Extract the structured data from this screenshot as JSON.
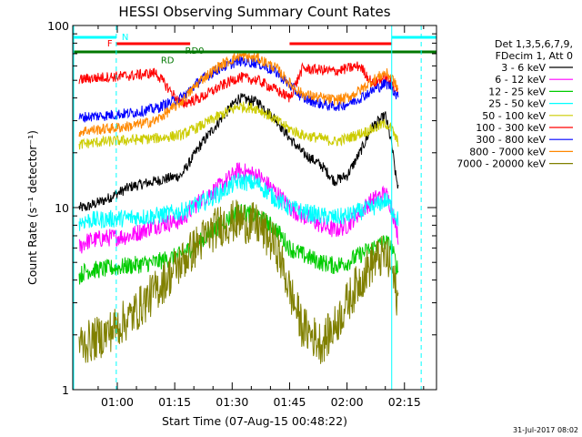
{
  "chart_data": {
    "type": "line",
    "title": "HESSI Observing Summary Count Rates",
    "xlabel": "Start Time (07-Aug-15 00:48:22)",
    "ylabel": "Count Rate (s⁻¹ detector⁻¹)",
    "y_scale": "log",
    "ylim": [
      1,
      100
    ],
    "xlim": [
      0,
      5700
    ],
    "x_unit": "seconds since 00:48:22",
    "x_ticks": [
      {
        "t": 698,
        "label": "01:00"
      },
      {
        "t": 1598,
        "label": "01:15"
      },
      {
        "t": 2498,
        "label": "01:30"
      },
      {
        "t": 3398,
        "label": "01:45"
      },
      {
        "t": 4298,
        "label": "02:00"
      },
      {
        "t": 5198,
        "label": "02:15"
      }
    ],
    "y_ticks": [
      {
        "v": 1,
        "label": "1"
      },
      {
        "v": 10,
        "label": "10"
      },
      {
        "v": 100,
        "label": "100"
      }
    ],
    "legend": {
      "placement": "right",
      "header": [
        "Det 1,3,5,6,7,9,",
        "FDecim 1, Att 0"
      ]
    },
    "series": [
      {
        "name": "3 - 6 keV",
        "color": "#000000",
        "points": [
          [
            100,
            10
          ],
          [
            200,
            10
          ],
          [
            500,
            11
          ],
          [
            900,
            13
          ],
          [
            1300,
            14
          ],
          [
            1700,
            15
          ],
          [
            2000,
            22
          ],
          [
            2300,
            30
          ],
          [
            2600,
            40
          ],
          [
            2900,
            38
          ],
          [
            3200,
            30
          ],
          [
            3400,
            24
          ],
          [
            3600,
            20
          ],
          [
            3900,
            17
          ],
          [
            4100,
            14
          ],
          [
            4300,
            15
          ],
          [
            4500,
            20
          ],
          [
            4700,
            28
          ],
          [
            4900,
            32
          ],
          [
            5000,
            22
          ],
          [
            5060,
            15
          ],
          [
            5100,
            13
          ]
        ]
      },
      {
        "name": "6 - 12 keV",
        "color": "#ff00ff",
        "points": [
          [
            100,
            6
          ],
          [
            200,
            6.5
          ],
          [
            500,
            6.8
          ],
          [
            900,
            7
          ],
          [
            1300,
            8
          ],
          [
            1700,
            8.5
          ],
          [
            2000,
            11
          ],
          [
            2300,
            13
          ],
          [
            2600,
            16
          ],
          [
            2900,
            15
          ],
          [
            3200,
            12
          ],
          [
            3400,
            10
          ],
          [
            3600,
            9
          ],
          [
            3900,
            8
          ],
          [
            4100,
            7.5
          ],
          [
            4300,
            8
          ],
          [
            4500,
            9.5
          ],
          [
            4700,
            11
          ],
          [
            4900,
            12
          ],
          [
            5000,
            10
          ],
          [
            5060,
            8
          ],
          [
            5100,
            7
          ]
        ]
      },
      {
        "name": "12 - 25 keV",
        "color": "#00cc00",
        "points": [
          [
            100,
            4.2
          ],
          [
            200,
            4.5
          ],
          [
            500,
            4.6
          ],
          [
            900,
            4.8
          ],
          [
            1300,
            5
          ],
          [
            1700,
            5.5
          ],
          [
            2000,
            6.5
          ],
          [
            2300,
            8
          ],
          [
            2600,
            9.5
          ],
          [
            2900,
            9
          ],
          [
            3200,
            7.5
          ],
          [
            3400,
            6
          ],
          [
            3600,
            5.5
          ],
          [
            3900,
            5
          ],
          [
            4100,
            4.8
          ],
          [
            4300,
            5
          ],
          [
            4500,
            5.5
          ],
          [
            4700,
            6
          ],
          [
            4900,
            6.5
          ],
          [
            5000,
            6
          ],
          [
            5060,
            5
          ],
          [
            5100,
            4.5
          ]
        ]
      },
      {
        "name": "25 - 50 keV",
        "color": "#00ffff",
        "points": [
          [
            100,
            8.3
          ],
          [
            200,
            8.5
          ],
          [
            500,
            8.6
          ],
          [
            900,
            8.8
          ],
          [
            1300,
            9
          ],
          [
            1700,
            9.5
          ],
          [
            2000,
            10.5
          ],
          [
            2300,
            12
          ],
          [
            2600,
            14
          ],
          [
            2900,
            13.5
          ],
          [
            3200,
            11
          ],
          [
            3400,
            10
          ],
          [
            3600,
            9.5
          ],
          [
            3900,
            9
          ],
          [
            4100,
            8.8
          ],
          [
            4300,
            9
          ],
          [
            4500,
            9.5
          ],
          [
            4700,
            10
          ],
          [
            4900,
            11
          ],
          [
            5000,
            10
          ],
          [
            5060,
            9
          ],
          [
            5100,
            8.5
          ]
        ]
      },
      {
        "name": "50 - 100 keV",
        "color": "#cccc00",
        "points": [
          [
            100,
            22
          ],
          [
            200,
            22.5
          ],
          [
            500,
            23
          ],
          [
            900,
            23.5
          ],
          [
            1300,
            24
          ],
          [
            1700,
            25
          ],
          [
            2000,
            28
          ],
          [
            2300,
            32
          ],
          [
            2600,
            36
          ],
          [
            2900,
            35
          ],
          [
            3200,
            30
          ],
          [
            3400,
            27
          ],
          [
            3600,
            25
          ],
          [
            3900,
            24
          ],
          [
            4100,
            23
          ],
          [
            4300,
            24
          ],
          [
            4500,
            25.5
          ],
          [
            4700,
            27
          ],
          [
            4900,
            29
          ],
          [
            5000,
            27
          ],
          [
            5060,
            24
          ],
          [
            5100,
            23
          ]
        ]
      },
      {
        "name": "100 - 300 keV",
        "color": "#ff0000",
        "points": [
          [
            100,
            50
          ],
          [
            200,
            51
          ],
          [
            500,
            52
          ],
          [
            900,
            53
          ],
          [
            1300,
            55
          ],
          [
            1700,
            37
          ],
          [
            2000,
            40
          ],
          [
            2300,
            46
          ],
          [
            2600,
            52
          ],
          [
            2900,
            50
          ],
          [
            3200,
            44
          ],
          [
            3400,
            40
          ],
          [
            3600,
            58
          ],
          [
            3900,
            57
          ],
          [
            4100,
            56
          ],
          [
            4300,
            58
          ],
          [
            4500,
            60
          ],
          [
            4700,
            48
          ],
          [
            4900,
            52
          ],
          [
            5000,
            48
          ],
          [
            5060,
            45
          ],
          [
            5100,
            44
          ]
        ]
      },
      {
        "name": "300 - 800 keV",
        "color": "#0000ff",
        "points": [
          [
            100,
            31
          ],
          [
            200,
            31.5
          ],
          [
            500,
            32
          ],
          [
            900,
            33
          ],
          [
            1300,
            35
          ],
          [
            1700,
            40
          ],
          [
            2000,
            50
          ],
          [
            2300,
            58
          ],
          [
            2600,
            64
          ],
          [
            2900,
            62
          ],
          [
            3200,
            55
          ],
          [
            3400,
            47
          ],
          [
            3600,
            40
          ],
          [
            3900,
            37
          ],
          [
            4100,
            36
          ],
          [
            4300,
            37
          ],
          [
            4500,
            40
          ],
          [
            4700,
            44
          ],
          [
            4900,
            48
          ],
          [
            5000,
            46
          ],
          [
            5060,
            42
          ],
          [
            5100,
            40
          ]
        ]
      },
      {
        "name": "800 - 7000 keV",
        "color": "#ff8800",
        "points": [
          [
            100,
            26
          ],
          [
            200,
            26.5
          ],
          [
            500,
            27
          ],
          [
            900,
            28
          ],
          [
            1300,
            30
          ],
          [
            1700,
            38
          ],
          [
            2000,
            50
          ],
          [
            2300,
            60
          ],
          [
            2600,
            68
          ],
          [
            2900,
            66
          ],
          [
            3200,
            58
          ],
          [
            3400,
            48
          ],
          [
            3600,
            42
          ],
          [
            3900,
            40
          ],
          [
            4100,
            39
          ],
          [
            4300,
            40
          ],
          [
            4500,
            44
          ],
          [
            4700,
            50
          ],
          [
            4900,
            55
          ],
          [
            5000,
            52
          ],
          [
            5060,
            47
          ],
          [
            5100,
            45
          ]
        ]
      },
      {
        "name": "7000 - 20000 keV",
        "color": "#808000",
        "points": [
          [
            100,
            1.8
          ],
          [
            200,
            1.8
          ],
          [
            500,
            2
          ],
          [
            900,
            2.5
          ],
          [
            1300,
            3.5
          ],
          [
            1700,
            5
          ],
          [
            2000,
            6.5
          ],
          [
            2300,
            8
          ],
          [
            2600,
            8.5
          ],
          [
            2900,
            8
          ],
          [
            3200,
            6
          ],
          [
            3400,
            3.5
          ],
          [
            3600,
            2.2
          ],
          [
            3900,
            1.8
          ],
          [
            4100,
            2.2
          ],
          [
            4300,
            3
          ],
          [
            4500,
            4
          ],
          [
            4700,
            5
          ],
          [
            4900,
            5.5
          ],
          [
            5000,
            4.5
          ],
          [
            5060,
            3.5
          ],
          [
            5100,
            3
          ]
        ]
      }
    ],
    "flags": {
      "night": {
        "label": "N",
        "color": "#00ffff",
        "intervals": [
          [
            0,
            682
          ],
          [
            4998,
            5700
          ]
        ]
      },
      "flare": {
        "label": "F",
        "color": "#ff0000",
        "intervals": [
          [
            682,
            1840
          ],
          [
            3398,
            4998
          ]
        ]
      },
      "attenuator": {
        "label": "RD",
        "color": "#007700",
        "intervals": [
          [
            0,
            5700
          ]
        ]
      }
    },
    "annotations": [
      {
        "label": "RD0",
        "t": 1760,
        "level": 70
      },
      {
        "label": "RD",
        "t": 1380,
        "level": 62
      }
    ],
    "vertical_lines": [
      {
        "t": 682,
        "style": "dashed",
        "color": "#00ffff"
      },
      {
        "t": 4998,
        "style": "solid",
        "color": "#00ffff"
      },
      {
        "t": 5460,
        "style": "dashed",
        "color": "#00ffff"
      }
    ],
    "grid": false
  },
  "footer": {
    "timestamp": "31-Jul-2017 08:02"
  }
}
